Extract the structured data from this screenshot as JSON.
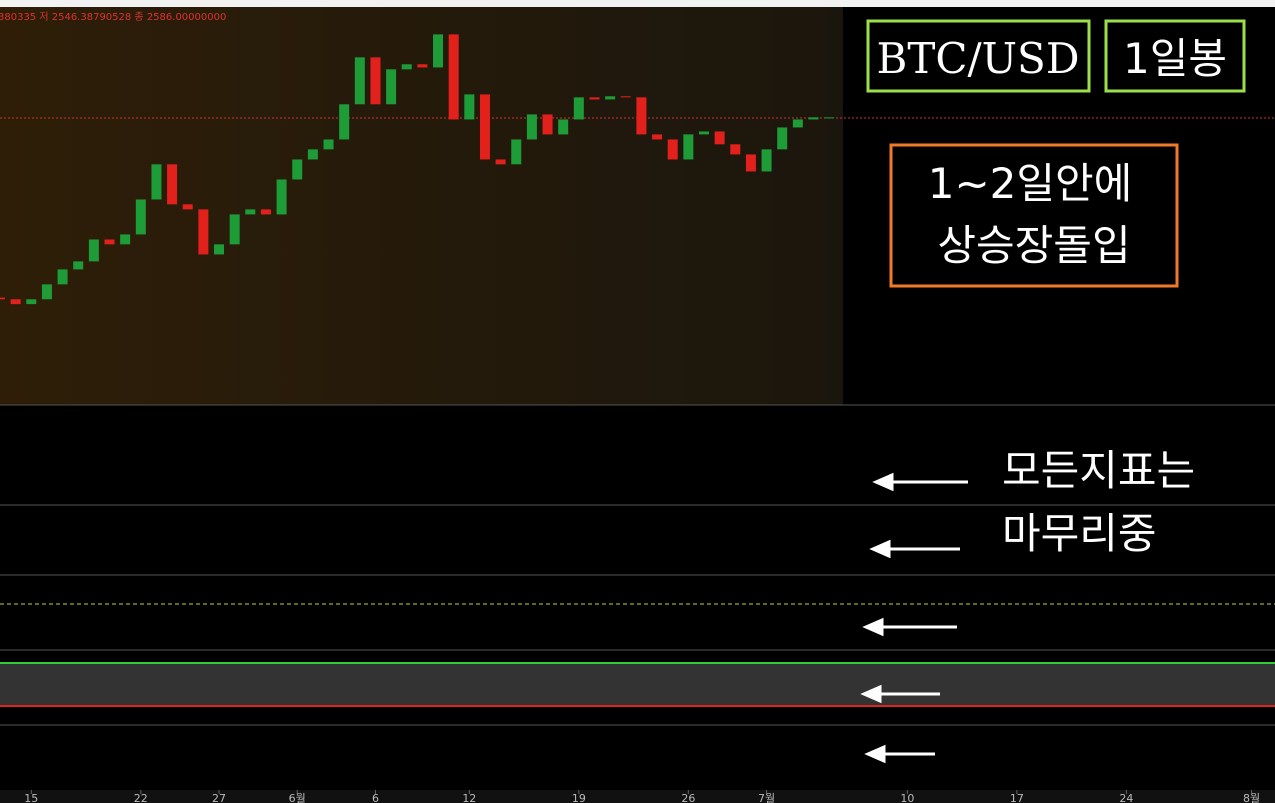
{
  "chart_data": {
    "type": "candlestick",
    "header": "380335 저 2546.38790528 종 2586.00000000",
    "annotations": [
      "BTC/USD",
      "1일봉",
      "1~2일안에",
      "상승장돌입",
      "모든지표는",
      "마무리중"
    ],
    "x": [
      0,
      1,
      2,
      3,
      4,
      5,
      6,
      7,
      8,
      9,
      10,
      11,
      12,
      13,
      14,
      15,
      16,
      17,
      18,
      19,
      20,
      21,
      22,
      23,
      24,
      25,
      26,
      27,
      28,
      29,
      30,
      31,
      32,
      33,
      34,
      35,
      36,
      37,
      38,
      39,
      40,
      41,
      42,
      43,
      44,
      45,
      46,
      47,
      48,
      49,
      50,
      51,
      52,
      53
    ],
    "open": [
      1730,
      1722,
      1699,
      1722,
      1793,
      1864,
      1902,
      2006,
      1983,
      2030,
      2196,
      2363,
      2173,
      2149,
      1935,
      1983,
      2125,
      2149,
      2125,
      2291,
      2386,
      2434,
      2481,
      2648,
      2871,
      2648,
      2814,
      2838,
      2823,
      2980,
      2576,
      2695,
      2386,
      2363,
      2481,
      2600,
      2505,
      2576,
      2681,
      2671,
      2686,
      2681,
      2505,
      2481,
      2386,
      2505,
      2519,
      2458,
      2410,
      2329,
      2434,
      2538,
      2576,
      2586
    ],
    "close": [
      1722,
      1699,
      1722,
      1793,
      1864,
      1902,
      2006,
      1983,
      2030,
      2196,
      2363,
      2173,
      2149,
      1935,
      1983,
      2125,
      2149,
      2125,
      2291,
      2386,
      2434,
      2481,
      2648,
      2871,
      2648,
      2814,
      2838,
      2823,
      2980,
      2576,
      2695,
      2386,
      2363,
      2481,
      2600,
      2505,
      2576,
      2681,
      2671,
      2686,
      2681,
      2505,
      2481,
      2386,
      2505,
      2519,
      2458,
      2410,
      2329,
      2434,
      2538,
      2576,
      2586,
      2586
    ],
    "up_color": "#1e9c38",
    "down_color": "#e3211c",
    "ylim": [
      1220,
      3110
    ],
    "xlim": [
      0,
      81.5
    ],
    "xticks": [
      {
        "value": 2,
        "label": "15"
      },
      {
        "value": 9,
        "label": "22"
      },
      {
        "value": 14,
        "label": "27"
      },
      {
        "value": 19,
        "label": "6월"
      },
      {
        "value": 24,
        "label": "6"
      },
      {
        "value": 30,
        "label": "12"
      },
      {
        "value": 37,
        "label": "19"
      },
      {
        "value": 44,
        "label": "26"
      },
      {
        "value": 49,
        "label": "7월"
      },
      {
        "value": 58,
        "label": "10"
      },
      {
        "value": 65,
        "label": "17"
      },
      {
        "value": 72,
        "label": "24"
      },
      {
        "value": 80,
        "label": "8월"
      }
    ]
  }
}
